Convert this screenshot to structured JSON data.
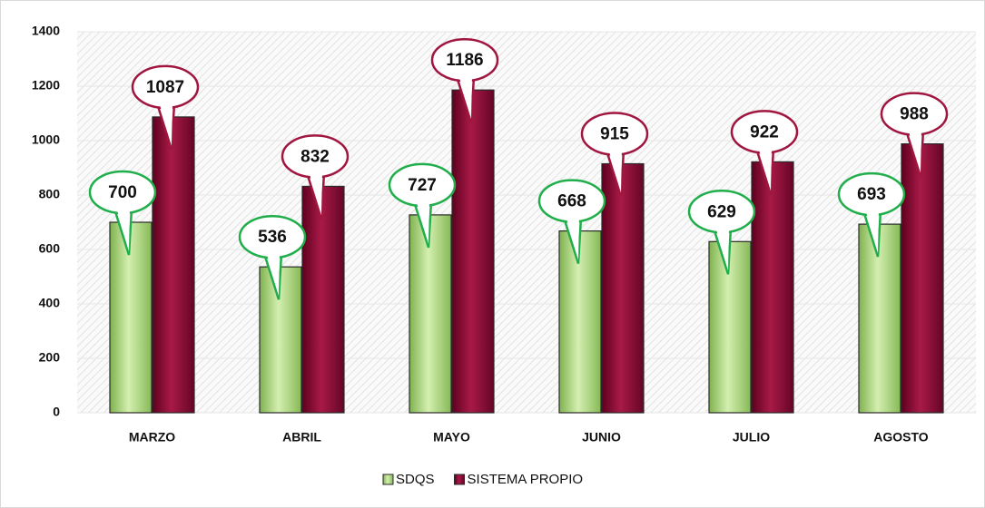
{
  "chart_data": {
    "type": "bar",
    "categories": [
      "MARZO",
      "ABRIL",
      "MAYO",
      "JUNIO",
      "JULIO",
      "AGOSTO"
    ],
    "series": [
      {
        "name": "SDQS",
        "color": "#a9d67a",
        "values": [
          700,
          536,
          727,
          668,
          629,
          693
        ]
      },
      {
        "name": "SISTEMA PROPIO",
        "color": "#8e0d36",
        "values": [
          1087,
          832,
          1186,
          915,
          922,
          988
        ]
      }
    ],
    "ylim": [
      0,
      1400
    ],
    "yticks": [
      0,
      200,
      400,
      600,
      800,
      1000,
      1200,
      1400
    ],
    "grid": true,
    "legend": "bottom"
  }
}
